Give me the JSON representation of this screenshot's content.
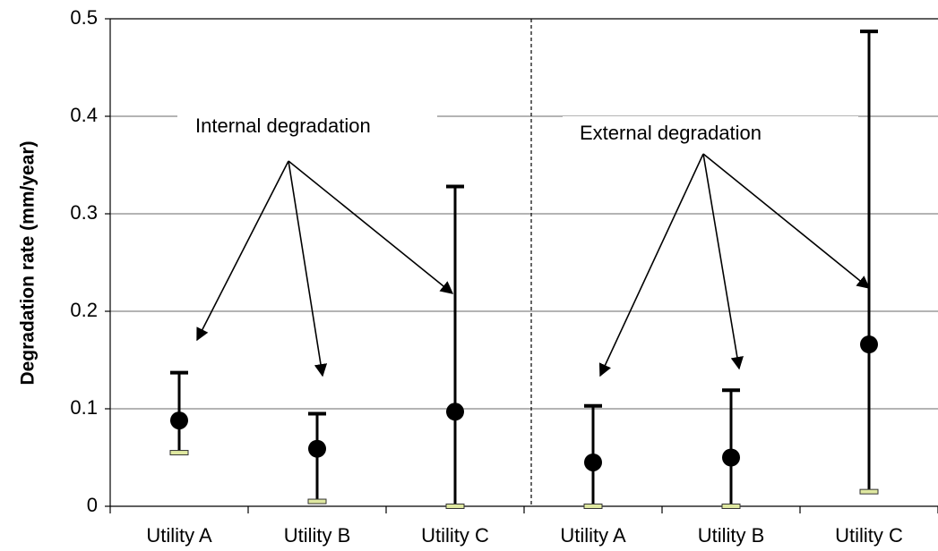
{
  "chart_data": {
    "type": "errorbar",
    "ylabel": "Degradation rate (mm/year)",
    "categories": [
      "Utility A",
      "Utility B",
      "Utility C",
      "Utility A",
      "Utility B",
      "Utility C"
    ],
    "values": [
      0.088,
      0.059,
      0.097,
      0.045,
      0.05,
      0.166
    ],
    "low": [
      0.055,
      0.005,
      0.0,
      0.0,
      0.0,
      0.015
    ],
    "high": [
      0.137,
      0.095,
      0.328,
      0.103,
      0.119,
      0.487
    ],
    "color": "#000000",
    "ylim": [
      0,
      0.5
    ],
    "yticks": [
      0,
      0.1,
      0.2,
      0.3,
      0.4,
      0.5
    ],
    "grid": true,
    "annotations": [
      "Internal degradation",
      "External degradation"
    ]
  }
}
